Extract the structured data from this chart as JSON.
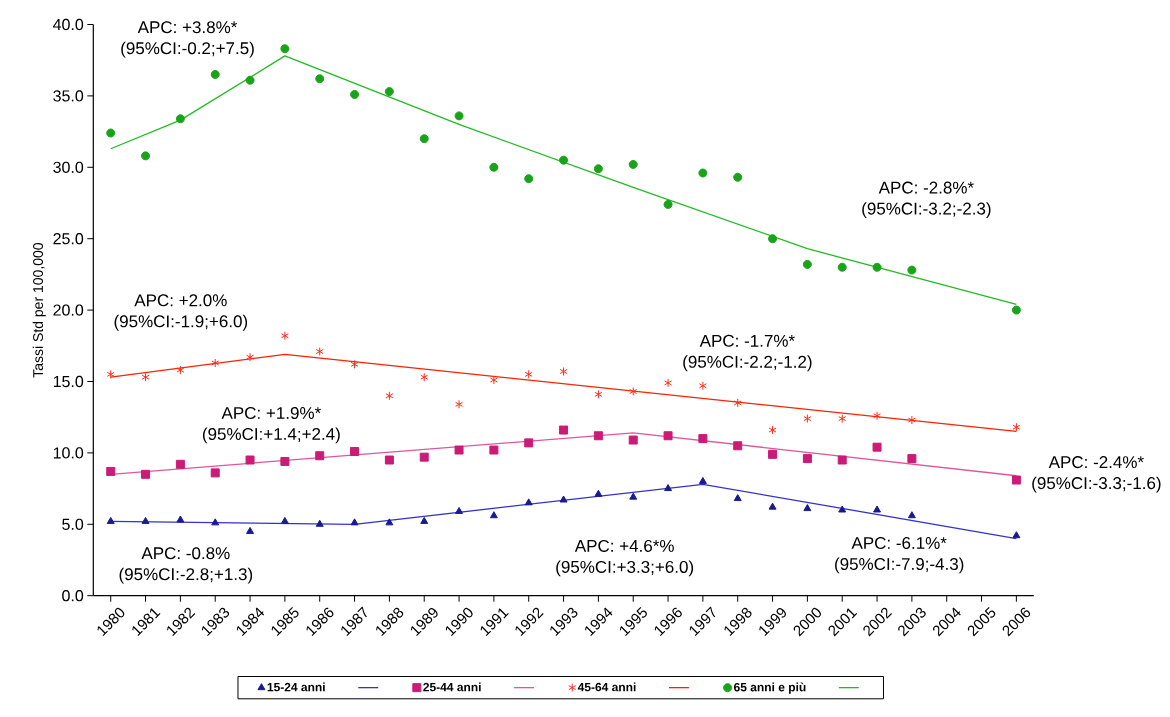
{
  "chart_data": {
    "type": "scatter",
    "ylabel": "Tassi Std per 100,000",
    "x": [
      1980,
      1981,
      1982,
      1983,
      1984,
      1985,
      1986,
      1987,
      1988,
      1989,
      1990,
      1991,
      1992,
      1993,
      1994,
      1995,
      1996,
      1997,
      1998,
      1999,
      2000,
      2001,
      2002,
      2003,
      2006
    ],
    "xlim": [
      1979.5,
      2006.5
    ],
    "xticks": [
      1980,
      1981,
      1982,
      1983,
      1984,
      1985,
      1986,
      1987,
      1988,
      1989,
      1990,
      1991,
      1992,
      1993,
      1994,
      1995,
      1996,
      1997,
      1998,
      1999,
      2000,
      2001,
      2002,
      2003,
      2004,
      2005,
      2006
    ],
    "ylim": [
      0,
      40
    ],
    "yticks": [
      {
        "value": 0,
        "label": "0.0"
      },
      {
        "value": 5,
        "label": "5.0"
      },
      {
        "value": 10,
        "label": "10.0"
      },
      {
        "value": 15,
        "label": "15.0"
      },
      {
        "value": 20,
        "label": "20.0"
      },
      {
        "value": 25,
        "label": "25.0"
      },
      {
        "value": 30,
        "label": "30.0"
      },
      {
        "value": 35,
        "label": "35.0"
      },
      {
        "value": 40,
        "label": "40.0"
      }
    ],
    "legend": "bottom",
    "series": [
      {
        "name": "15-24 anni",
        "marker": "triangle",
        "color": "#1a1a8f",
        "values": [
          5.2,
          5.2,
          5.3,
          5.1,
          4.5,
          5.2,
          5.0,
          5.1,
          5.1,
          5.2,
          5.9,
          5.6,
          6.5,
          6.7,
          7.1,
          6.9,
          7.5,
          8.0,
          6.8,
          6.2,
          6.1,
          6.0,
          6.0,
          5.6,
          4.2
        ]
      },
      {
        "type": "line",
        "color": "#3333cc",
        "x": [
          1980,
          1987,
          1997,
          2006
        ],
        "values": [
          5.2,
          5.0,
          7.8,
          4.0
        ]
      },
      {
        "name": "25-44 anni",
        "marker": "square",
        "color": "#cc1a77",
        "values": [
          8.7,
          8.5,
          9.2,
          8.6,
          9.5,
          9.4,
          9.8,
          10.1,
          9.5,
          9.7,
          10.2,
          10.2,
          10.7,
          11.6,
          11.2,
          10.9,
          11.2,
          11.0,
          10.5,
          9.9,
          9.6,
          9.5,
          10.4,
          9.6,
          8.1
        ]
      },
      {
        "type": "line",
        "color": "#e0559e",
        "x": [
          1980,
          1995,
          2006
        ],
        "values": [
          8.5,
          11.4,
          8.4
        ]
      },
      {
        "name": "45-64 anni",
        "marker": "cross",
        "color": "#ff2a1a",
        "values": [
          15.5,
          15.3,
          15.8,
          16.3,
          16.7,
          18.2,
          17.1,
          16.2,
          14.0,
          15.3,
          13.4,
          15.1,
          15.5,
          15.7,
          14.1,
          14.3,
          14.9,
          14.7,
          13.5,
          11.6,
          12.4,
          12.4,
          12.6,
          12.3,
          11.8
        ]
      },
      {
        "type": "line",
        "color": "#ff2200",
        "x": [
          1980,
          1985,
          2006
        ],
        "values": [
          15.3,
          16.9,
          11.5
        ]
      },
      {
        "name": "65 anni e più",
        "marker": "circle",
        "color": "#19a319",
        "values": [
          32.4,
          30.8,
          33.4,
          36.5,
          36.1,
          38.3,
          36.2,
          35.1,
          35.3,
          32.0,
          33.6,
          30.0,
          29.2,
          30.5,
          29.9,
          30.2,
          27.4,
          29.6,
          29.3,
          25.0,
          23.2,
          23.0,
          23.0,
          22.8,
          20.0
        ]
      },
      {
        "type": "line",
        "color": "#22bb22",
        "x": [
          1980,
          1982,
          1985,
          1990,
          1995,
          2000,
          2006
        ],
        "values": [
          31.3,
          33.3,
          37.8,
          33.0,
          28.6,
          24.3,
          20.4
        ]
      }
    ],
    "annotations": [
      "APC: +3.8%* (95%CI:-0.2;+7.5)",
      "APC: +2.0% (95%CI:-1.9;+6.0)",
      "APC: +1.9%* (95%CI:+1.4;+2.4)",
      "APC: -0.8% (95%CI:-2.8;+1.3)",
      "APC: +4.6*% (95%CI:+3.3;+6.0)",
      "APC: -6.1%* (95%CI:-7.9;-4.3)",
      "APC: -2.4%* (95%CI:-3.3;-1.6)",
      "APC: -1.7%* (95%CI:-2.2;-1.2)",
      "APC: -2.8%* (95%CI:-3.2;-2.3)"
    ]
  }
}
